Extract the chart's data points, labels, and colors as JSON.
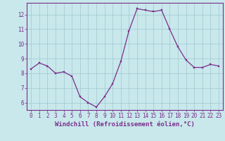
{
  "x": [
    0,
    1,
    2,
    3,
    4,
    5,
    6,
    7,
    8,
    9,
    10,
    11,
    12,
    13,
    14,
    15,
    16,
    17,
    18,
    19,
    20,
    21,
    22,
    23
  ],
  "y": [
    8.3,
    8.7,
    8.5,
    8.0,
    8.1,
    7.8,
    6.4,
    6.0,
    5.7,
    6.4,
    7.3,
    8.8,
    10.9,
    12.4,
    12.3,
    12.2,
    12.3,
    11.0,
    9.8,
    8.9,
    8.4,
    8.4,
    8.6,
    8.5
  ],
  "line_color": "#7B2D8B",
  "marker_color": "#7B2D8B",
  "bg_color": "#C8E8EC",
  "grid_color": "#A0C8D0",
  "axis_color": "#7B2D8B",
  "tick_color": "#7B2D8B",
  "xlabel": "Windchill (Refroidissement éolien,°C)",
  "ylim": [
    5.5,
    12.8
  ],
  "xlim": [
    -0.5,
    23.5
  ],
  "yticks": [
    6,
    7,
    8,
    9,
    10,
    11,
    12
  ],
  "xticks": [
    0,
    1,
    2,
    3,
    4,
    5,
    6,
    7,
    8,
    9,
    10,
    11,
    12,
    13,
    14,
    15,
    16,
    17,
    18,
    19,
    20,
    21,
    22,
    23
  ],
  "font_family": "monospace",
  "tick_fontsize": 5.5,
  "xlabel_fontsize": 6.5
}
